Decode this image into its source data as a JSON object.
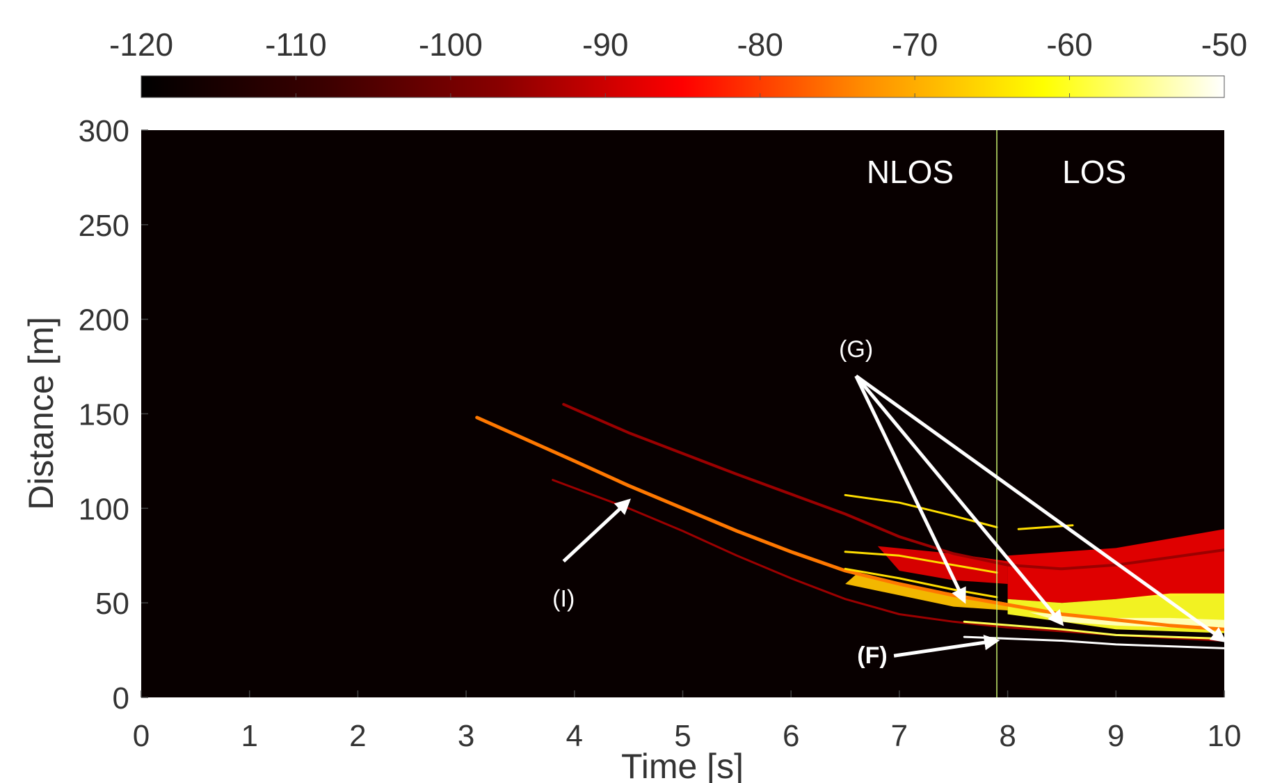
{
  "chart_data": {
    "type": "heatmap",
    "title": "",
    "xlabel": "Time [s]",
    "ylabel": "Distance [m]",
    "xlim": [
      0,
      10
    ],
    "ylim": [
      0,
      300
    ],
    "x_ticks": [
      {
        "value": 0,
        "label": "0"
      },
      {
        "value": 1,
        "label": "1"
      },
      {
        "value": 2,
        "label": "2"
      },
      {
        "value": 3,
        "label": "3"
      },
      {
        "value": 4,
        "label": "4"
      },
      {
        "value": 5,
        "label": "5"
      },
      {
        "value": 6,
        "label": "6"
      },
      {
        "value": 7,
        "label": "7"
      },
      {
        "value": 8,
        "label": "8"
      },
      {
        "value": 9,
        "label": "9"
      },
      {
        "value": 10,
        "label": "10"
      }
    ],
    "y_ticks": [
      {
        "value": 0,
        "label": "0"
      },
      {
        "value": 50,
        "label": "50"
      },
      {
        "value": 100,
        "label": "100"
      },
      {
        "value": 150,
        "label": "150"
      },
      {
        "value": 200,
        "label": "200"
      },
      {
        "value": 250,
        "label": "250"
      },
      {
        "value": 300,
        "label": "300"
      }
    ],
    "colorbar": {
      "range": [
        -120,
        -50
      ],
      "stops": [
        "#000000",
        "#3a0000",
        "#8a0000",
        "#ff0000",
        "#ff8c00",
        "#ffff00",
        "#ffffff"
      ],
      "ticks": [
        {
          "value": -120,
          "label": "-120"
        },
        {
          "value": -110,
          "label": "-110"
        },
        {
          "value": -100,
          "label": "-100"
        },
        {
          "value": -90,
          "label": "-90"
        },
        {
          "value": -80,
          "label": "-80"
        },
        {
          "value": -70,
          "label": "-70"
        },
        {
          "value": -60,
          "label": "-60"
        },
        {
          "value": -50,
          "label": "-50"
        }
      ]
    },
    "background_value": -120,
    "tracks": [
      {
        "name": "track-upper",
        "points": [
          [
            3.9,
            155
          ],
          [
            4.5,
            140
          ],
          [
            5.5,
            118
          ],
          [
            6.5,
            97
          ],
          [
            7.0,
            85
          ],
          [
            7.5,
            76
          ],
          [
            8.0,
            70
          ],
          [
            8.5,
            68
          ],
          [
            9.0,
            70
          ],
          [
            9.5,
            74
          ],
          [
            10.0,
            78
          ]
        ],
        "value": -95,
        "width": 4
      },
      {
        "name": "track-main",
        "points": [
          [
            3.1,
            148
          ],
          [
            4.0,
            125
          ],
          [
            4.5,
            112
          ],
          [
            5.0,
            100
          ],
          [
            5.5,
            88
          ],
          [
            6.0,
            77
          ],
          [
            6.5,
            67
          ],
          [
            7.0,
            60
          ],
          [
            7.5,
            54
          ],
          [
            8.0,
            49
          ],
          [
            8.5,
            44
          ],
          [
            9.0,
            41
          ],
          [
            9.5,
            38
          ],
          [
            10.0,
            36
          ]
        ],
        "value": -75,
        "width": 5
      },
      {
        "name": "track-lower",
        "points": [
          [
            3.8,
            115
          ],
          [
            4.5,
            100
          ],
          [
            5.0,
            88
          ],
          [
            5.5,
            75
          ],
          [
            6.0,
            63
          ],
          [
            6.5,
            52
          ],
          [
            7.0,
            44
          ],
          [
            7.5,
            40
          ],
          [
            8.0,
            37
          ],
          [
            9.0,
            33
          ],
          [
            10.0,
            30
          ]
        ],
        "value": -95,
        "width": 3
      },
      {
        "name": "track-yellow-top",
        "points": [
          [
            6.5,
            107
          ],
          [
            7.0,
            103
          ],
          [
            7.5,
            96
          ],
          [
            7.9,
            90
          ]
        ],
        "value": -65,
        "width": 3
      },
      {
        "name": "track-yellow-mid",
        "points": [
          [
            6.5,
            77
          ],
          [
            7.0,
            75
          ],
          [
            7.5,
            70
          ],
          [
            7.9,
            66
          ]
        ],
        "value": -65,
        "width": 3
      },
      {
        "name": "track-yellow-low",
        "points": [
          [
            6.5,
            68
          ],
          [
            7.0,
            63
          ],
          [
            7.5,
            57
          ],
          [
            7.9,
            53
          ]
        ],
        "value": -65,
        "width": 3
      },
      {
        "name": "track-yellow-short",
        "points": [
          [
            8.1,
            89
          ],
          [
            8.6,
            91
          ]
        ],
        "value": -65,
        "width": 3
      },
      {
        "name": "track-floor-white",
        "points": [
          [
            7.6,
            32
          ],
          [
            8.5,
            30
          ],
          [
            9.0,
            28
          ],
          [
            10.0,
            26
          ]
        ],
        "value": -50,
        "width": 3
      },
      {
        "name": "track-floor-yellow",
        "points": [
          [
            7.6,
            40
          ],
          [
            8.5,
            36
          ],
          [
            9.0,
            33
          ],
          [
            10.0,
            31
          ]
        ],
        "value": -58,
        "width": 3
      }
    ],
    "regions": [
      {
        "name": "region-nlos-red",
        "points": [
          [
            6.8,
            80
          ],
          [
            7.5,
            76
          ],
          [
            8.0,
            72
          ],
          [
            8.0,
            60
          ],
          [
            7.5,
            62
          ],
          [
            7.0,
            67
          ]
        ],
        "value": -88
      },
      {
        "name": "region-los-red",
        "points": [
          [
            8.0,
            75
          ],
          [
            9.0,
            79
          ],
          [
            9.6,
            85
          ],
          [
            10.0,
            89
          ],
          [
            10.0,
            55
          ],
          [
            9.0,
            52
          ],
          [
            8.5,
            50
          ],
          [
            8.0,
            52
          ]
        ],
        "value": -87
      },
      {
        "name": "region-los-bright",
        "points": [
          [
            8.0,
            52
          ],
          [
            8.5,
            50
          ],
          [
            9.0,
            52
          ],
          [
            9.5,
            55
          ],
          [
            10.0,
            55
          ],
          [
            10.0,
            34
          ],
          [
            9.0,
            36
          ],
          [
            8.5,
            40
          ],
          [
            8.0,
            44
          ]
        ],
        "value": -60
      },
      {
        "name": "region-los-white",
        "points": [
          [
            8.2,
            45
          ],
          [
            9.0,
            42
          ],
          [
            9.5,
            42
          ],
          [
            10.0,
            41
          ],
          [
            10.0,
            36
          ],
          [
            9.5,
            37
          ],
          [
            9.0,
            38
          ],
          [
            8.5,
            40
          ]
        ],
        "value": -53
      },
      {
        "name": "region-nlos-bright",
        "points": [
          [
            6.6,
            65
          ],
          [
            7.2,
            58
          ],
          [
            7.8,
            52
          ],
          [
            8.0,
            50
          ],
          [
            8.0,
            46
          ],
          [
            7.5,
            48
          ],
          [
            7.0,
            54
          ],
          [
            6.5,
            60
          ]
        ],
        "value": -68
      }
    ],
    "divider": {
      "x": 7.9,
      "color": "#c8f070"
    },
    "annotations": [
      {
        "id": "nlos",
        "label": "NLOS",
        "x": 7.1,
        "y": 272,
        "bold": false,
        "color": "#ffffff"
      },
      {
        "id": "los",
        "label": "LOS",
        "x": 8.8,
        "y": 272,
        "bold": false,
        "color": "#ffffff"
      },
      {
        "id": "g",
        "label": "(G)",
        "x": 6.6,
        "y": 180,
        "bold": false,
        "color": "#ffffff",
        "arrows": [
          {
            "from": [
              6.6,
              170
            ],
            "to": [
              7.6,
              51
            ]
          },
          {
            "from": [
              6.6,
              170
            ],
            "to": [
              8.5,
              39
            ]
          },
          {
            "from": [
              6.6,
              170
            ],
            "to": [
              10.0,
              30
            ]
          }
        ]
      },
      {
        "id": "i",
        "label": "(I)",
        "x": 3.9,
        "y": 48,
        "bold": false,
        "color": "#ffffff",
        "arrows": [
          {
            "from": [
              3.9,
              72
            ],
            "to": [
              4.5,
              104
            ]
          }
        ]
      },
      {
        "id": "f",
        "label": "(F)",
        "x": 6.75,
        "y": 18,
        "bold": true,
        "color": "#ffffff",
        "arrows": [
          {
            "from": [
              6.95,
              22
            ],
            "to": [
              7.9,
              30
            ]
          }
        ]
      }
    ]
  }
}
